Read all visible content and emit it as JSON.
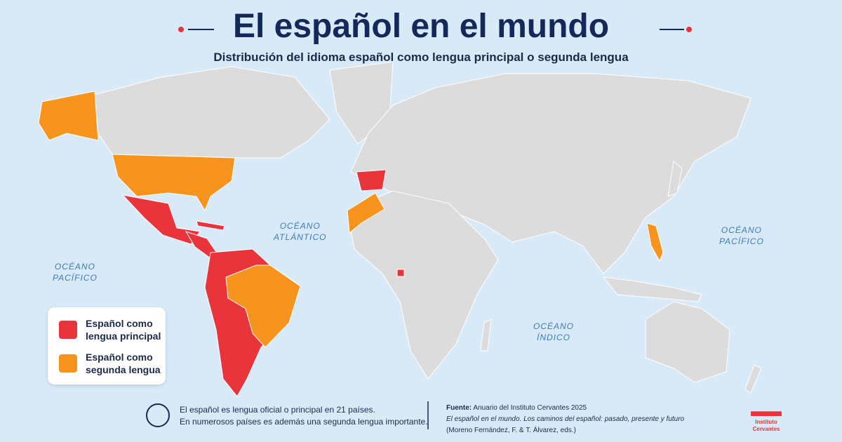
{
  "header": {
    "title": "El español en el mundo",
    "subtitle": "Distribución del idioma español como lengua principal o segunda lengua"
  },
  "oceans": [
    [
      "OCÉANO",
      "PACÍFICO"
    ],
    [
      "OCÉANO",
      "ATLÁNTICO"
    ],
    [
      "OCÉANO",
      "ÍNDICO"
    ],
    [
      "OCÉANO",
      "PACÍFICO"
    ]
  ],
  "legend": [
    [
      "Español como",
      "lengua principal"
    ],
    [
      "Español como",
      "segunda lengua"
    ]
  ],
  "footer": {
    "note": [
      "El español es lengua oficial o principal en 21 países.",
      "En numerosos países es además una segunda lengua importante."
    ],
    "source": {
      "label": "Fuente:",
      "text": "Anuario del Instituto Cervantes 2025",
      "work": "El español en el mundo. Los caminos del español: pasado, presente y futuro",
      "editors": "(Moreno Fernández, F. & T. Álvarez, eds.)"
    }
  },
  "logo": [
    "Instituto",
    "Cervantes"
  ]
}
